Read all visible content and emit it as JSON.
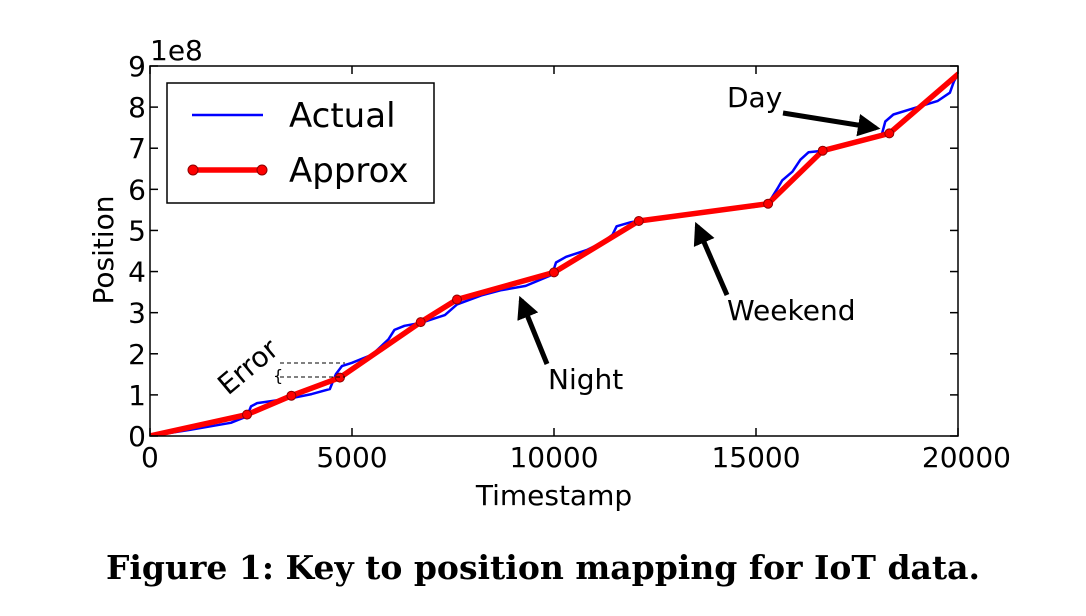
{
  "caption": "Figure 1: Key to position mapping for IoT data.",
  "chart_data": {
    "type": "line",
    "xlabel": "Timestamp",
    "ylabel": "Position",
    "y_exponent_label": "1e8",
    "xlim": [
      0,
      20000
    ],
    "ylim": [
      0,
      900000000
    ],
    "x_ticks": [
      0,
      5000,
      10000,
      15000,
      20000
    ],
    "x_tick_labels": [
      "0",
      "5000",
      "10000",
      "15000",
      "20000"
    ],
    "y_ticks": [
      0,
      100000000,
      200000000,
      300000000,
      400000000,
      500000000,
      600000000,
      700000000,
      800000000,
      900000000
    ],
    "y_tick_labels": [
      "0",
      "1",
      "2",
      "3",
      "4",
      "5",
      "6",
      "7",
      "8",
      "9"
    ],
    "grid": false,
    "legend_position": "top-left",
    "colors": {
      "actual": "#0000ff",
      "approx": "#ff0000",
      "marker_edge": "#8b0000"
    },
    "series": [
      {
        "name": "Actual",
        "x": [
          0,
          1000,
          2000,
          2400,
          2500,
          2650,
          3000,
          3500,
          4000,
          4450,
          4600,
          4750,
          5000,
          5500,
          5900,
          6050,
          6300,
          6700,
          7300,
          7600,
          8200,
          8700,
          9300,
          9950,
          10050,
          10300,
          10800,
          11200,
          11450,
          11550,
          11900,
          12100,
          13000,
          14000,
          15000,
          15300,
          15550,
          15650,
          15900,
          16100,
          16300,
          16650,
          17200,
          17900,
          18100,
          18200,
          18400,
          19000,
          19500,
          19800,
          19900,
          20000
        ],
        "y": [
          0,
          15000000,
          32000000,
          48000000,
          72000000,
          80000000,
          85000000,
          92000000,
          102000000,
          114000000,
          150000000,
          170000000,
          178000000,
          198000000,
          235000000,
          258000000,
          268000000,
          275000000,
          294000000,
          320000000,
          342000000,
          355000000,
          365000000,
          392000000,
          422000000,
          436000000,
          452000000,
          471000000,
          490000000,
          510000000,
          520000000,
          523000000,
          532000000,
          546000000,
          558000000,
          565000000,
          605000000,
          622000000,
          643000000,
          672000000,
          690000000,
          694000000,
          708000000,
          723000000,
          728000000,
          765000000,
          782000000,
          800000000,
          815000000,
          835000000,
          863000000,
          880000000
        ]
      },
      {
        "name": "Approx",
        "x": [
          0,
          2400,
          3500,
          4700,
          6700,
          7600,
          10000,
          12100,
          15300,
          16650,
          18300,
          20000
        ],
        "y": [
          0,
          52000000,
          98000000,
          142000000,
          277000000,
          332000000,
          398000000,
          523000000,
          565000000,
          694000000,
          736000000,
          880000000
        ]
      }
    ],
    "annotations": [
      {
        "text": "Error",
        "x": 1900,
        "y": 165000000
      },
      {
        "text": "Night",
        "x": 9800,
        "y": 135000000,
        "arrow_to": [
          9150,
          345000000
        ]
      },
      {
        "text": "Weekend",
        "x": 14300,
        "y": 310000000,
        "arrow_to": [
          13350,
          510000000
        ]
      },
      {
        "text": "Day",
        "x": 15800,
        "y": 825000000,
        "arrow_to": [
          18150,
          735000000
        ]
      }
    ]
  }
}
